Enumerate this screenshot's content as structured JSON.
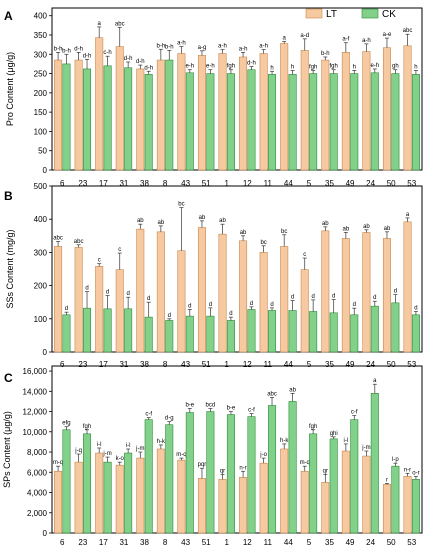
{
  "legend": [
    {
      "name": "LT",
      "color": "#f6c9a0",
      "stroke": "#c8884e"
    },
    {
      "name": "CK",
      "color": "#82d18a",
      "stroke": "#2e8b3a"
    }
  ],
  "chart_data": [
    {
      "type": "bar",
      "panel_label": "A",
      "ylabel": "Pro Content (μg/g)",
      "ylim": [
        0,
        420
      ],
      "yticks": [
        0,
        50,
        100,
        150,
        200,
        250,
        300,
        350,
        400
      ],
      "ytick_labels": [
        "0",
        "50",
        "100",
        "150",
        "200",
        "250",
        "300",
        "350",
        "400"
      ],
      "categories": [
        "6",
        "23",
        "17",
        "31",
        "38",
        "8",
        "43",
        "51",
        "1",
        "12",
        "11",
        "44",
        "5",
        "35",
        "49",
        "24",
        "50",
        "53"
      ],
      "legend_position": "top-right",
      "series": [
        {
          "name": "LT",
          "values": [
            285,
            285,
            343,
            320,
            262,
            285,
            302,
            297,
            302,
            293,
            302,
            328,
            310,
            285,
            305,
            307,
            317,
            322
          ],
          "errors": [
            20,
            20,
            28,
            50,
            10,
            28,
            18,
            12,
            10,
            12,
            10,
            5,
            30,
            8,
            25,
            20,
            25,
            30
          ],
          "sig": [
            "b-h",
            "d-h",
            "a",
            "abc",
            "d-h",
            "b-h",
            "a-h",
            "a-g",
            "a-h",
            "a-h",
            "a-h",
            "a",
            "a-d",
            "b-h",
            "a-f",
            "a-h",
            "a-e",
            "abc"
          ]
        },
        {
          "name": "CK",
          "values": [
            275,
            262,
            270,
            265,
            248,
            285,
            252,
            250,
            250,
            260,
            248,
            248,
            250,
            250,
            250,
            252,
            250,
            248
          ],
          "errors": [
            25,
            25,
            25,
            15,
            8,
            25,
            8,
            10,
            10,
            8,
            8,
            10,
            8,
            10,
            8,
            10,
            10,
            10
          ],
          "sig": [
            "b-h",
            "d-h",
            "c-h",
            "d-h",
            "d-h",
            "b-h",
            "e-h",
            "e-h",
            "fgh",
            "d-h",
            "h",
            "h",
            "fgh",
            "fgh",
            "h",
            "e-h",
            "gh",
            "h"
          ]
        }
      ]
    },
    {
      "type": "bar",
      "panel_label": "B",
      "ylabel": "SSs Content (mg/g)",
      "ylim": [
        0,
        500
      ],
      "yticks": [
        0,
        100,
        200,
        300,
        400,
        500
      ],
      "ytick_labels": [
        "0",
        "100",
        "200",
        "300",
        "400",
        "500"
      ],
      "categories": [
        "6",
        "23",
        "17",
        "31",
        "38",
        "8",
        "43",
        "51",
        "1",
        "12",
        "11",
        "44",
        "5",
        "35",
        "49",
        "24",
        "50",
        "53"
      ],
      "series": [
        {
          "name": "LT",
          "values": [
            318,
            315,
            258,
            248,
            370,
            362,
            305,
            375,
            355,
            335,
            300,
            318,
            248,
            365,
            342,
            360,
            342,
            392
          ],
          "errors": [
            15,
            8,
            8,
            50,
            15,
            18,
            130,
            20,
            30,
            15,
            20,
            35,
            35,
            12,
            18,
            8,
            20,
            12
          ],
          "sig": [
            "abc",
            "abc",
            "c",
            "c",
            "ab",
            "ab",
            "bc",
            "ab",
            "ab",
            "ab",
            "bc",
            "bc",
            "c",
            "ab",
            "ab",
            "ab",
            "ab",
            "a"
          ]
        },
        {
          "name": "CK",
          "values": [
            112,
            132,
            130,
            130,
            105,
            95,
            108,
            108,
            95,
            128,
            125,
            125,
            122,
            118,
            112,
            138,
            148,
            112
          ],
          "errors": [
            8,
            50,
            40,
            35,
            45,
            5,
            20,
            25,
            10,
            8,
            8,
            30,
            35,
            40,
            20,
            15,
            25,
            10
          ],
          "sig": [
            "d",
            "d",
            "d",
            "d",
            "d",
            "d",
            "d",
            "d",
            "d",
            "d",
            "d",
            "d",
            "d",
            "d",
            "d",
            "d",
            "d",
            "d"
          ]
        }
      ]
    },
    {
      "type": "bar",
      "panel_label": "C",
      "ylabel": "SPs Content (μg/g)",
      "ylim": [
        0,
        16500
      ],
      "yticks": [
        0,
        2000,
        4000,
        6000,
        8000,
        10000,
        12000,
        14000,
        16000
      ],
      "ytick_labels": [
        "0",
        "2,000",
        "4,000",
        "6,000",
        "8,000",
        "10,000",
        "12,000",
        "14,000",
        "16,000"
      ],
      "categories": [
        "6",
        "23",
        "17",
        "31",
        "38",
        "8",
        "43",
        "51",
        "1",
        "12",
        "11",
        "44",
        "5",
        "35",
        "49",
        "24",
        "50",
        "53"
      ],
      "series": [
        {
          "name": "LT",
          "values": [
            6100,
            7000,
            7900,
            6700,
            7400,
            8300,
            7200,
            5400,
            5300,
            5500,
            6900,
            8300,
            6100,
            5000,
            8100,
            7600,
            4800,
            5600
          ],
          "errors": [
            500,
            800,
            500,
            300,
            600,
            400,
            200,
            1000,
            500,
            600,
            500,
            500,
            500,
            800,
            700,
            500,
            100,
            300
          ],
          "sig": [
            "m-q",
            "j-q",
            "i-l",
            "k-o",
            "j-m",
            "h-k",
            "m-q",
            "pqr",
            "qr",
            "n-r",
            "j-o",
            "h-k",
            "m-q",
            "qr",
            "i-l",
            "j-m",
            "r",
            "n-r"
          ]
        },
        {
          "name": "CK",
          "values": [
            10200,
            9800,
            7000,
            7900,
            11200,
            10700,
            11900,
            12000,
            11700,
            11500,
            12600,
            13000,
            9800,
            9300,
            11200,
            13800,
            6600,
            5300
          ],
          "errors": [
            300,
            400,
            500,
            400,
            200,
            300,
            400,
            300,
            300,
            300,
            800,
            800,
            400,
            200,
            400,
            900,
            300,
            300
          ],
          "sig": [
            "efg",
            "fgh",
            "j-m",
            "i-l",
            "c-f",
            "d-g",
            "b-e",
            "bcd",
            "b-e",
            "c-f",
            "abc",
            "ab",
            "fgh",
            "ghi",
            "c-f",
            "a",
            "l-p",
            "o-r"
          ]
        }
      ]
    }
  ]
}
